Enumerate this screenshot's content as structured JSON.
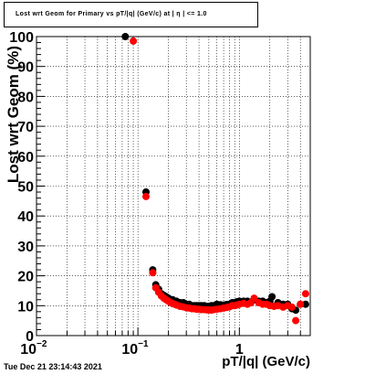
{
  "title": "Lost wrt Geom for Primary vs pT/|q| (GeV/c) at | η | <= 1.0",
  "timestamp": "Tue Dec 21 23:14:43 2021",
  "chart_data": {
    "type": "scatter",
    "title": "Lost wrt Geom for Primary vs pT/|q| (GeV/c) at | η | <= 1.0",
    "xlabel": "pT/|q| (GeV/c)",
    "ylabel": "Lost wrt Geom (%)",
    "xscale": "log",
    "xlim": [
      0.01,
      5.0
    ],
    "ylim": [
      0,
      100
    ],
    "x_tick_labels": [
      {
        "x": 0.01,
        "label": "10",
        "sup": "−2"
      },
      {
        "x": 0.1,
        "label": "10",
        "sup": "−1"
      },
      {
        "x": 1,
        "label": "1",
        "sup": ""
      }
    ],
    "y_ticks": [
      0,
      10,
      20,
      30,
      40,
      50,
      60,
      70,
      80,
      90,
      100
    ],
    "grid": true,
    "legend": "none",
    "series": [
      {
        "color": "#000000",
        "points": [
          [
            0.075,
            100
          ],
          [
            0.12,
            48
          ],
          [
            0.14,
            22
          ],
          [
            0.15,
            17
          ],
          [
            0.16,
            15.5
          ],
          [
            0.17,
            14
          ],
          [
            0.18,
            13.5
          ],
          [
            0.19,
            13
          ],
          [
            0.2,
            12.5
          ],
          [
            0.21,
            12
          ],
          [
            0.22,
            12
          ],
          [
            0.23,
            11.5
          ],
          [
            0.24,
            11.5
          ],
          [
            0.26,
            11
          ],
          [
            0.28,
            11
          ],
          [
            0.3,
            10.5
          ],
          [
            0.32,
            10.5
          ],
          [
            0.34,
            10
          ],
          [
            0.36,
            10
          ],
          [
            0.38,
            10
          ],
          [
            0.4,
            10
          ],
          [
            0.42,
            10
          ],
          [
            0.45,
            10
          ],
          [
            0.48,
            9.8
          ],
          [
            0.5,
            9.8
          ],
          [
            0.53,
            10
          ],
          [
            0.56,
            10
          ],
          [
            0.6,
            10.5
          ],
          [
            0.65,
            10.3
          ],
          [
            0.7,
            10.2
          ],
          [
            0.75,
            10.4
          ],
          [
            0.8,
            10.5
          ],
          [
            0.85,
            11
          ],
          [
            0.9,
            11
          ],
          [
            0.95,
            11.3
          ],
          [
            1.0,
            11.5
          ],
          [
            1.1,
            11.5
          ],
          [
            1.2,
            11.5
          ],
          [
            1.3,
            11.2
          ],
          [
            1.4,
            12
          ],
          [
            1.55,
            11.5
          ],
          [
            1.7,
            11.5
          ],
          [
            1.85,
            11
          ],
          [
            2.0,
            11.5
          ],
          [
            2.1,
            13
          ],
          [
            2.4,
            11
          ],
          [
            2.7,
            10.5
          ],
          [
            3.0,
            10.5
          ],
          [
            3.3,
            9
          ],
          [
            3.6,
            8.5
          ],
          [
            4.0,
            10.5
          ],
          [
            4.5,
            10.5
          ]
        ]
      },
      {
        "color": "#ff0000",
        "points": [
          [
            0.09,
            98.5
          ],
          [
            0.12,
            46.5
          ],
          [
            0.14,
            21
          ],
          [
            0.15,
            16
          ],
          [
            0.16,
            14.5
          ],
          [
            0.17,
            13.3
          ],
          [
            0.18,
            12.5
          ],
          [
            0.19,
            12
          ],
          [
            0.2,
            11.5
          ],
          [
            0.21,
            11
          ],
          [
            0.22,
            10.7
          ],
          [
            0.23,
            10.5
          ],
          [
            0.24,
            10.2
          ],
          [
            0.26,
            9.8
          ],
          [
            0.28,
            9.6
          ],
          [
            0.3,
            9.3
          ],
          [
            0.32,
            9.2
          ],
          [
            0.34,
            9
          ],
          [
            0.36,
            9
          ],
          [
            0.38,
            8.8
          ],
          [
            0.4,
            8.8
          ],
          [
            0.42,
            8.7
          ],
          [
            0.45,
            8.7
          ],
          [
            0.48,
            8.6
          ],
          [
            0.5,
            8.6
          ],
          [
            0.53,
            8.5
          ],
          [
            0.56,
            8.7
          ],
          [
            0.6,
            8.8
          ],
          [
            0.65,
            9
          ],
          [
            0.7,
            9.2
          ],
          [
            0.75,
            9.4
          ],
          [
            0.8,
            9.6
          ],
          [
            0.85,
            10
          ],
          [
            0.9,
            10
          ],
          [
            0.95,
            10.2
          ],
          [
            1.0,
            10.5
          ],
          [
            1.1,
            10.8
          ],
          [
            1.2,
            10.5
          ],
          [
            1.3,
            11
          ],
          [
            1.4,
            12.5
          ],
          [
            1.55,
            11
          ],
          [
            1.7,
            10.5
          ],
          [
            1.85,
            10.5
          ],
          [
            2.0,
            10
          ],
          [
            2.2,
            9.8
          ],
          [
            2.4,
            10
          ],
          [
            2.7,
            9.5
          ],
          [
            3.0,
            10
          ],
          [
            3.3,
            9.5
          ],
          [
            3.6,
            5
          ],
          [
            4.0,
            10.5
          ],
          [
            4.5,
            14
          ]
        ]
      }
    ]
  }
}
